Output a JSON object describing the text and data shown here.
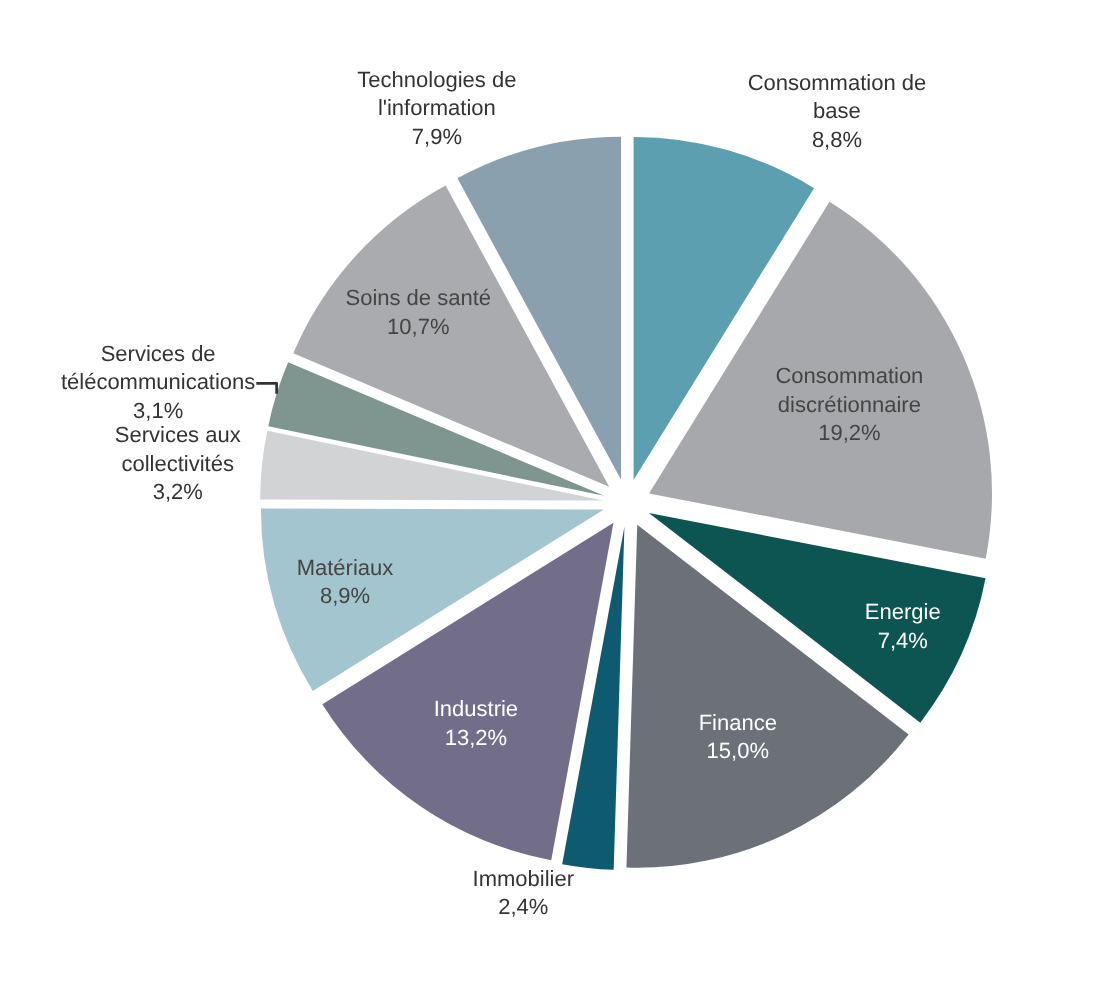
{
  "chart_data": {
    "type": "pie",
    "categories": [
      "Consommation de base",
      "Consommation discrétionnaire",
      "Energie",
      "Finance",
      "Immobilier",
      "Industrie",
      "Matériaux",
      "Services aux collectivités",
      "Services de télécommunications",
      "Soins de santé",
      "Technologies de l'information"
    ],
    "values": [
      8.8,
      19.2,
      7.4,
      15.0,
      2.4,
      13.2,
      8.9,
      3.2,
      3.1,
      10.7,
      7.9
    ],
    "value_labels": [
      "8,8%",
      "19,2%",
      "7,4%",
      "15,0%",
      "2,4%",
      "13,2%",
      "8,9%",
      "3,2%",
      "3,1%",
      "10,7%",
      "7,9%"
    ],
    "colors": [
      "#5b9fb0",
      "#a6a8ab",
      "#0d5552",
      "#6b7079",
      "#0e5a70",
      "#726e8a",
      "#a3c5d0",
      "#d1d3d5",
      "#7f9690",
      "#a9abae",
      "#8aa0ae"
    ],
    "legend": false
  }
}
